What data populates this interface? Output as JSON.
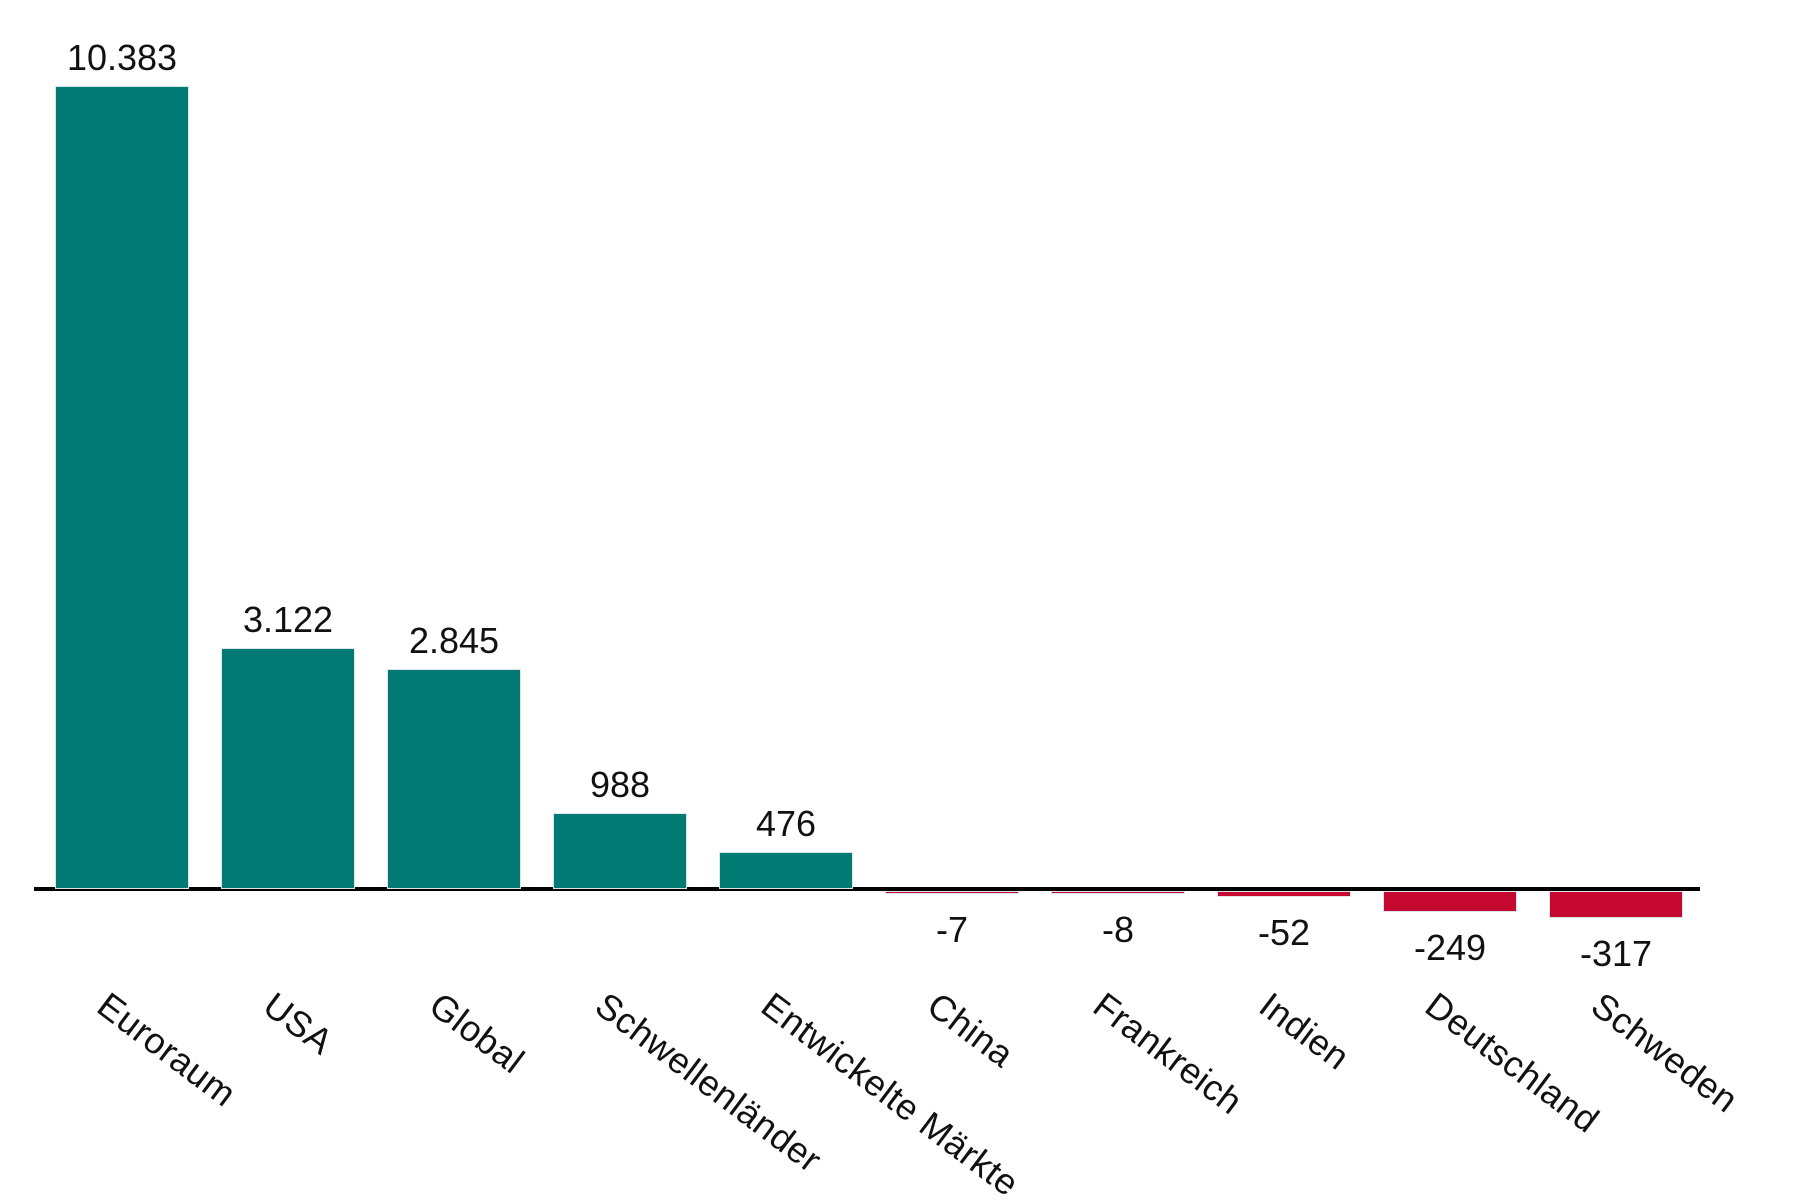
{
  "chart_data": {
    "type": "bar",
    "title": "",
    "xlabel": "",
    "ylabel": "",
    "categories": [
      "Euroraum",
      "USA",
      "Global",
      "Schwellenländer",
      "Entwickelte Märkte",
      "China",
      "Frankreich",
      "Indien",
      "Deutschland",
      "Schweden"
    ],
    "values": [
      10383,
      3122,
      2845,
      988,
      476,
      -7,
      -8,
      -52,
      -249,
      -317
    ],
    "value_labels": [
      "10.383",
      "3.122",
      "2.845",
      "988",
      "476",
      "-7",
      "-8",
      "-52",
      "-249",
      "-317"
    ],
    "ylim": [
      -500,
      10500
    ],
    "grid": false,
    "legend": "none",
    "bar_colors": {
      "positive": "#007a72",
      "negative": "#c40830"
    },
    "bar_border_color": "#dce4ec",
    "axis_color": "#000000",
    "text_color": "#111111",
    "background_color": "#ffffff"
  }
}
